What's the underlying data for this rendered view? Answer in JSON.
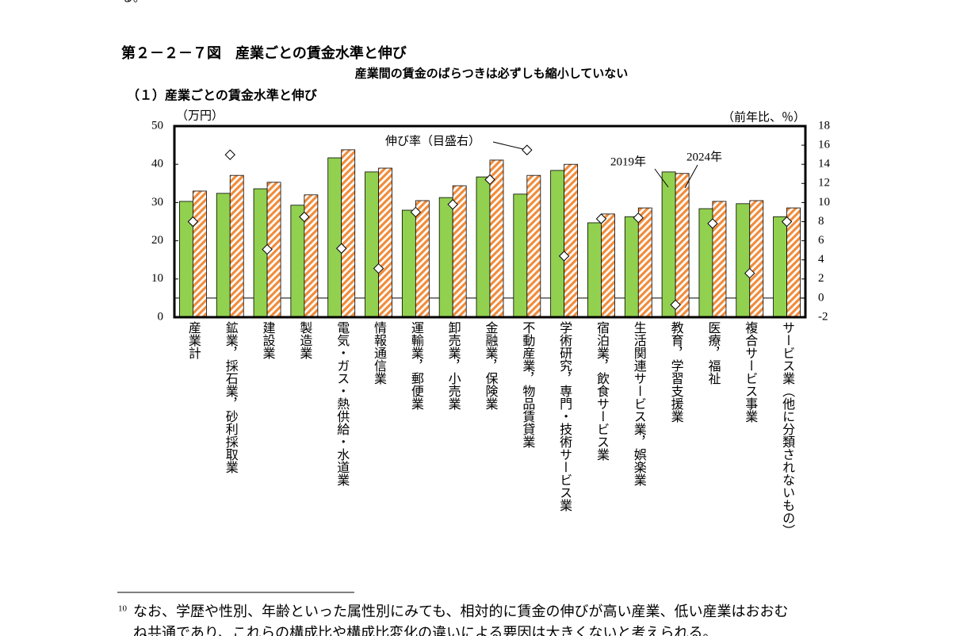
{
  "page_top_fragment": "る。",
  "chart_data": {
    "type": "bar",
    "title": "第２－２－７図　産業ごとの賃金水準と伸び",
    "subtitle": "産業間の賃金のばらつきは必ずしも縮小していない",
    "panel_title": "（１）産業ごとの賃金水準と伸び",
    "y_label": "（万円）",
    "y2_label": "（前年比、％）",
    "categories": [
      "産業計",
      "鉱業，採石業，砂利採取業",
      "建設業",
      "製造業",
      "電気・ガス・熱供給・水道業",
      "情報通信業",
      "運輸業，郵便業",
      "卸売業，小売業",
      "金融業，保険業",
      "不動産業，物品賃貸業",
      "学術研究，専門・技術サービス業",
      "宿泊業，飲食サービス業",
      "生活関連サービス業，娯楽業",
      "教育，学習支援業",
      "医療，福祉",
      "複合サービス事業",
      "サービス業（他に分類されないもの）"
    ],
    "series": [
      {
        "name": "2019年",
        "color": "#92d050",
        "values": [
          30.3,
          32.4,
          33.6,
          29.3,
          41.7,
          38.0,
          28.0,
          31.3,
          36.7,
          32.2,
          38.4,
          24.7,
          26.3,
          38.0,
          28.4,
          29.7,
          26.3
        ]
      },
      {
        "name": "2024年",
        "color": "#f08c3c",
        "hatched": true,
        "values": [
          33.0,
          37.1,
          35.3,
          32.0,
          43.8,
          39.0,
          30.5,
          34.4,
          41.1,
          37.1,
          40.0,
          27.0,
          28.6,
          37.6,
          30.3,
          30.5,
          28.6
        ]
      },
      {
        "name": "伸び率（目盛右）",
        "type": "scatter",
        "axis": "y2",
        "marker": "diamond",
        "color": "#ffffff",
        "values": [
          8.0,
          15.0,
          5.1,
          8.5,
          5.2,
          3.1,
          9.0,
          9.8,
          12.4,
          15.5,
          4.4,
          8.3,
          8.4,
          -0.7,
          7.8,
          2.6,
          8.0
        ]
      }
    ],
    "ylim": [
      0,
      50
    ],
    "yticks": [
      0,
      10,
      20,
      30,
      40,
      50
    ],
    "y2lim": [
      -2,
      18
    ],
    "y2ticks": [
      -2,
      0,
      2,
      4,
      6,
      8,
      10,
      12,
      14,
      16,
      18
    ],
    "y2_zero_line": true
  },
  "footnote": {
    "marker": "10",
    "lines": [
      "なお、学歴や性別、年齢といった属性別にみても、相対的に賃金の伸びが高い産業、低い産業はおおむ",
      "ね共通であり、これらの構成比や構成比変化の違いによる要因は大きくないと考えられる。"
    ]
  }
}
